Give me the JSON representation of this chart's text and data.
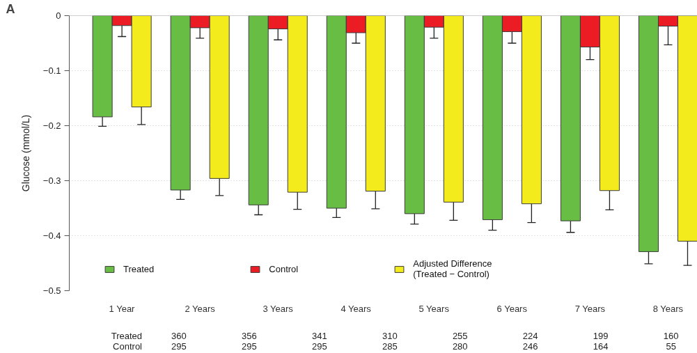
{
  "chart_data": {
    "type": "bar",
    "title": "A",
    "ylabel": "Glucose (mmol/L)",
    "categories": [
      "1 Year",
      "2 Years",
      "3 Years",
      "4 Years",
      "5 Years",
      "6 Years",
      "7 Years",
      "8 Years"
    ],
    "series": [
      {
        "name": "Treated",
        "color": "#68bd45",
        "values": [
          -0.184,
          -0.317,
          -0.344,
          -0.35,
          -0.36,
          -0.371,
          -0.373,
          -0.429
        ],
        "errors": [
          [
            -0.201,
            -0.184
          ],
          [
            -0.334,
            -0.317
          ],
          [
            -0.362,
            -0.344
          ],
          [
            -0.367,
            -0.35
          ],
          [
            -0.379,
            -0.36
          ],
          [
            -0.39,
            -0.371
          ],
          [
            -0.394,
            -0.373
          ],
          [
            -0.451,
            -0.429
          ]
        ]
      },
      {
        "name": "Control",
        "color": "#ec1c24",
        "values": [
          -0.018,
          -0.022,
          -0.024,
          -0.031,
          -0.021,
          -0.029,
          -0.057,
          -0.019
        ],
        "errors": [
          [
            -0.038,
            -0.018
          ],
          [
            -0.041,
            -0.022
          ],
          [
            -0.044,
            -0.024
          ],
          [
            -0.05,
            -0.031
          ],
          [
            -0.041,
            -0.021
          ],
          [
            -0.05,
            -0.029
          ],
          [
            -0.08,
            -0.057
          ],
          [
            -0.053,
            -0.019
          ]
        ]
      },
      {
        "name": "Adjusted Difference\n(Treated − Control)",
        "color": "#f3eb1b",
        "values": [
          -0.166,
          -0.296,
          -0.321,
          -0.319,
          -0.339,
          -0.342,
          -0.318,
          -0.41
        ],
        "errors": [
          [
            -0.198,
            -0.166
          ],
          [
            -0.327,
            -0.296
          ],
          [
            -0.352,
            -0.321
          ],
          [
            -0.351,
            -0.319
          ],
          [
            -0.372,
            -0.339
          ],
          [
            -0.376,
            -0.342
          ],
          [
            -0.353,
            -0.318
          ],
          [
            -0.454,
            -0.41
          ]
        ]
      }
    ],
    "ylim": [
      -0.5,
      0
    ],
    "yticks": [
      -0.5,
      -0.4,
      -0.3,
      -0.2,
      -0.1,
      0
    ],
    "grid": "y",
    "legend": "bottom left",
    "ref_lines": [
      {
        "axis": "y",
        "value": 0,
        "color": "#a0a0a0"
      }
    ],
    "annotations": [
      "Treated",
      "360",
      "356",
      "341",
      "310",
      "255",
      "224",
      "199",
      "160",
      "Control",
      "295",
      "295",
      "295",
      "285",
      "280",
      "246",
      "164",
      "55"
    ]
  }
}
